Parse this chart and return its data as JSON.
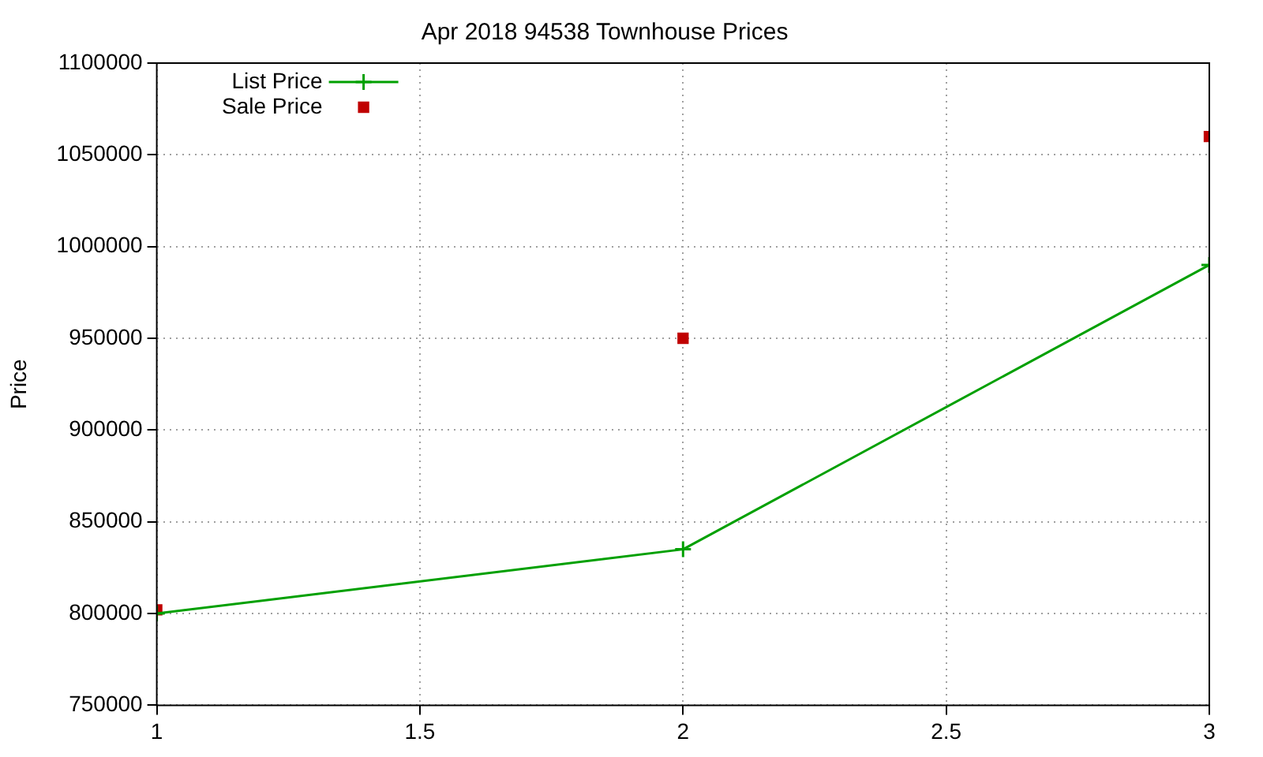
{
  "chart_data": {
    "type": "line",
    "title": "Apr 2018 94538 Townhouse Prices",
    "ylabel": "Price",
    "xlim": [
      1,
      3
    ],
    "xticks": [
      1,
      1.5,
      2,
      2.5,
      3
    ],
    "ylim": [
      750000,
      1100000
    ],
    "yticks": [
      750000,
      800000,
      850000,
      900000,
      950000,
      1000000,
      1050000,
      1100000
    ],
    "grid": true,
    "legend": "top left",
    "line_style": "solid",
    "series": [
      {
        "name": "List Price",
        "type": "line",
        "marker": "cross",
        "color": "#00a000",
        "x": [
          1,
          2,
          3
        ],
        "values": [
          800000,
          835000,
          990000
        ]
      },
      {
        "name": "Sale Price",
        "type": "scatter",
        "marker": "square",
        "color": "#c00000",
        "x": [
          1,
          2,
          3
        ],
        "values": [
          802000,
          950000,
          1060000
        ]
      }
    ]
  }
}
